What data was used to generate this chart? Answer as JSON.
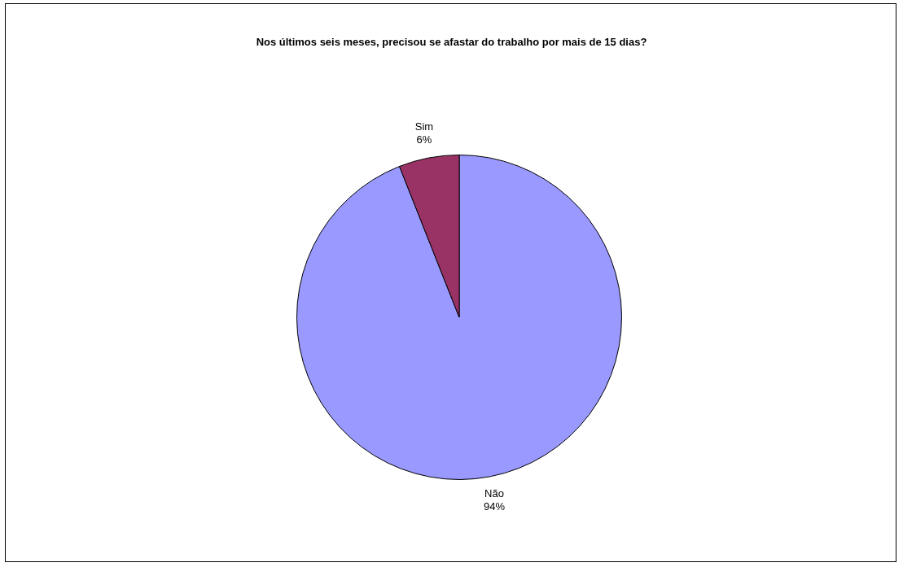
{
  "chart_data": {
    "type": "pie",
    "title": "Nos últimos seis meses, precisou se afastar do trabalho por mais de 15 dias?",
    "categories": [
      "Não",
      "Sim"
    ],
    "values": [
      94,
      6
    ],
    "value_labels": [
      "94%",
      "6%"
    ],
    "colors": [
      "#9999ff",
      "#993366"
    ],
    "legend": false
  }
}
